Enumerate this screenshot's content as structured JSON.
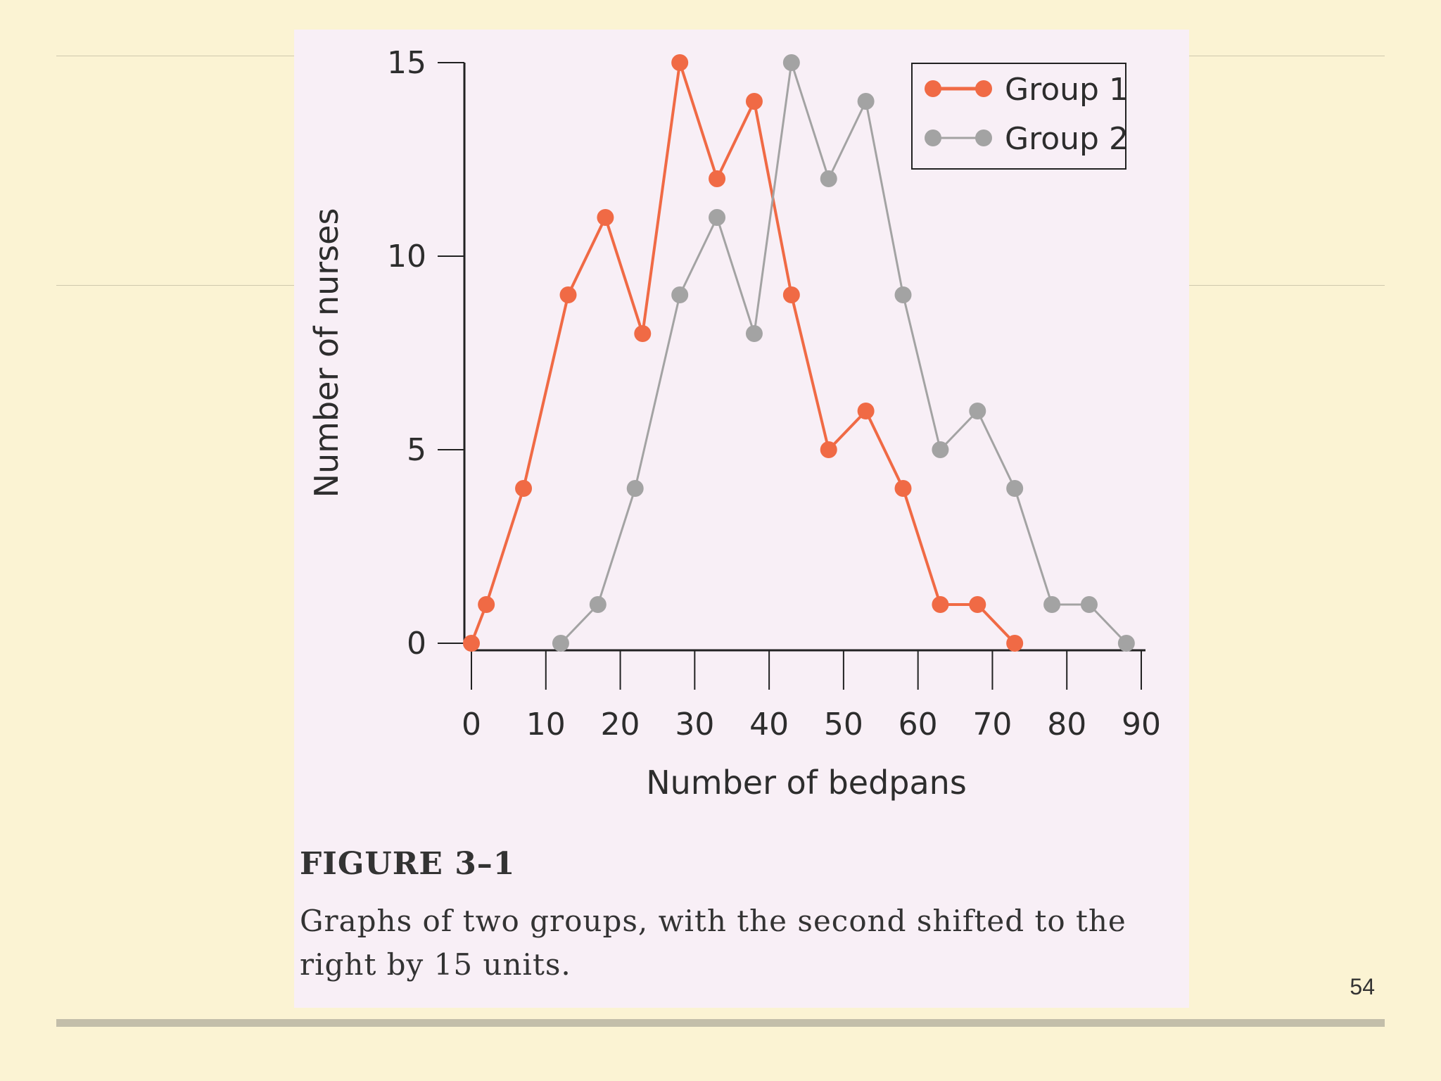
{
  "slide": {
    "page_number": "54",
    "figure_title": "FIGURE 3–1",
    "figure_caption": "Graphs of two groups, with the second shifted to the right by 15 units."
  },
  "chart_data": {
    "type": "line",
    "title": "",
    "xlabel": "Number of bedpans",
    "ylabel": "Number of nurses",
    "xlim": [
      0,
      90
    ],
    "ylim": [
      0,
      15
    ],
    "x_ticks": [
      0,
      10,
      20,
      30,
      40,
      50,
      60,
      70,
      80,
      90
    ],
    "y_ticks": [
      0,
      5,
      10,
      15
    ],
    "grid": false,
    "legend_position": "top-right",
    "series": [
      {
        "name": "Group 1",
        "color": "#f06a45",
        "points": [
          [
            0,
            0
          ],
          [
            2,
            1
          ],
          [
            7,
            4
          ],
          [
            13,
            9
          ],
          [
            18,
            11
          ],
          [
            23,
            8
          ],
          [
            28,
            15
          ],
          [
            33,
            12
          ],
          [
            38,
            14
          ],
          [
            43,
            9
          ],
          [
            48,
            5
          ],
          [
            53,
            6
          ],
          [
            58,
            4
          ],
          [
            63,
            1
          ],
          [
            68,
            1
          ],
          [
            73,
            0
          ]
        ]
      },
      {
        "name": "Group 2",
        "color": "#a3a3a3",
        "points": [
          [
            12,
            0
          ],
          [
            17,
            1
          ],
          [
            22,
            4
          ],
          [
            28,
            9
          ],
          [
            33,
            11
          ],
          [
            38,
            8
          ],
          [
            43,
            15
          ],
          [
            48,
            12
          ],
          [
            53,
            14
          ],
          [
            58,
            9
          ],
          [
            63,
            5
          ],
          [
            68,
            6
          ],
          [
            73,
            4
          ],
          [
            78,
            1
          ],
          [
            83,
            1
          ],
          [
            88,
            0
          ]
        ]
      }
    ]
  }
}
